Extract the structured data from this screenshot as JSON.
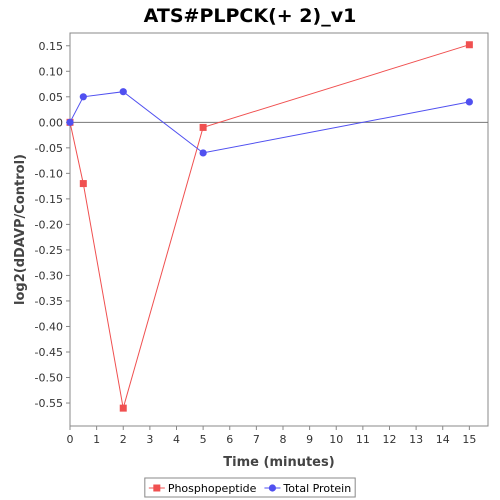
{
  "chart_data": {
    "type": "line",
    "title": "ATS#PLPCK(+ 2)_v1",
    "xlabel": "Time (minutes)",
    "ylabel": "log2(dDAVP/Control)",
    "xlim": [
      0,
      15.7
    ],
    "ylim": [
      -0.595,
      0.175
    ],
    "x_ticks": [
      0,
      1,
      2,
      3,
      4,
      5,
      6,
      7,
      8,
      9,
      10,
      11,
      12,
      13,
      14,
      15
    ],
    "y_ticks": [
      0.15,
      0.1,
      0.05,
      0.0,
      -0.05,
      -0.1,
      -0.15,
      -0.2,
      -0.25,
      -0.3,
      -0.35,
      -0.4,
      -0.45,
      -0.5,
      -0.55
    ],
    "y_tick_labels": [
      "0.15",
      "0.10",
      "0.05",
      "0.00",
      "-0.05",
      "-0.10",
      "-0.15",
      "-0.20",
      "-0.25",
      "-0.30",
      "-0.35",
      "-0.40",
      "-0.45",
      "-0.50",
      "-0.55"
    ],
    "zero_line": true,
    "grid": false,
    "legend_position": "bottom",
    "series": [
      {
        "name": "Phosphopeptide",
        "color": "#f05050",
        "marker": "square",
        "x": [
          0,
          0.5,
          2,
          5,
          15
        ],
        "y": [
          0.0,
          -0.12,
          -0.56,
          -0.01,
          0.152
        ]
      },
      {
        "name": "Total Protein",
        "color": "#5050f0",
        "marker": "circle",
        "x": [
          0,
          0.5,
          2,
          5,
          15
        ],
        "y": [
          0.0,
          0.05,
          0.06,
          -0.06,
          0.04
        ]
      }
    ]
  }
}
